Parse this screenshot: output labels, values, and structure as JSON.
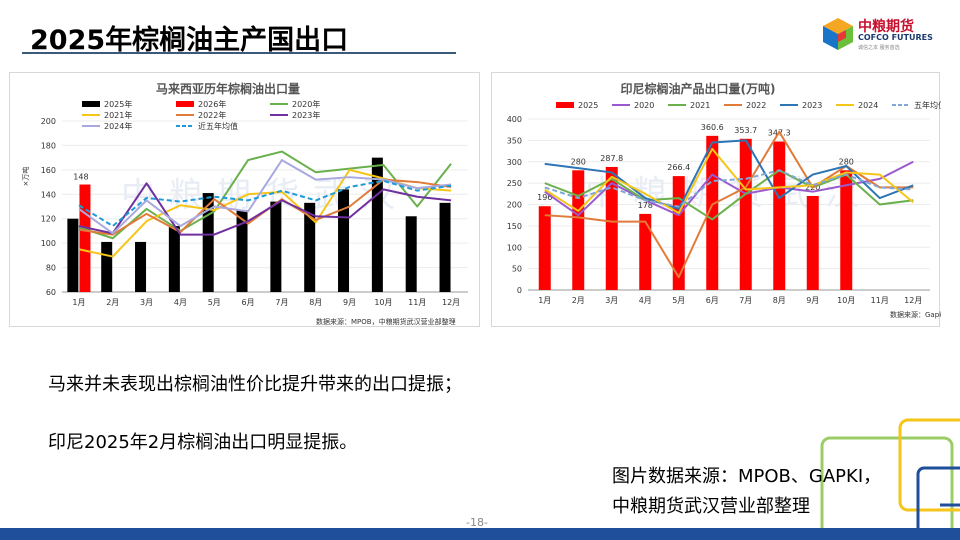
{
  "page": {
    "title": "2025年棕榈油主产国出口",
    "page_number": "-18-",
    "logo": {
      "name_cn": "中粮期货",
      "name_en": "COFCO FUTURES",
      "tagline": "诚信之本 服务首选"
    },
    "bullets": [
      "马来并未表现出棕榈油性价比提升带来的出口提振；",
      "印尼2025年2月棕榈油出口明显提振。"
    ],
    "source_lines": [
      "图片数据来源：MPOB、GAPKI，",
      "中粮期货武汉营业部整理"
    ],
    "colors": {
      "title_rule": "#3a5a7a",
      "footer": "#1f4e9b",
      "brand_red": "#c8102e",
      "brand_blue": "#1a3a6e"
    }
  },
  "chart_data": [
    {
      "type": "bar",
      "title": "马来西亚历年棕榈油出口量",
      "ylabel": "×万吨",
      "ylim": [
        60,
        200
      ],
      "yticks": [
        60,
        80,
        100,
        120,
        140,
        160,
        180,
        200
      ],
      "categories": [
        "1月",
        "2月",
        "3月",
        "4月",
        "5月",
        "6月",
        "7月",
        "8月",
        "9月",
        "10月",
        "11月",
        "12月"
      ],
      "watermark": "中粮期货武汉",
      "source": "数据来源：MPOB，中粮期货武汉营业部整理",
      "bar_label": "148",
      "series": [
        {
          "name": "2025年",
          "kind": "bar",
          "color": "#000000",
          "values": [
            120,
            101,
            101,
            114,
            141,
            127,
            134,
            133,
            144,
            170,
            122,
            133
          ]
        },
        {
          "name": "2026年",
          "kind": "bar",
          "color": "#ff0000",
          "values": [
            148,
            null,
            null,
            null,
            null,
            null,
            null,
            null,
            null,
            null,
            null,
            null
          ]
        },
        {
          "name": "2020年",
          "kind": "line",
          "color": "#6ab04c",
          "values": [
            113,
            104,
            128,
            110,
            126,
            168,
            175,
            158,
            161,
            164,
            130,
            165
          ]
        },
        {
          "name": "2021年",
          "kind": "line",
          "color": "#f5c518",
          "values": [
            95,
            89,
            118,
            131,
            127,
            140,
            142,
            117,
            160,
            153,
            145,
            143
          ]
        },
        {
          "name": "2022年",
          "kind": "line",
          "color": "#e07b39",
          "values": [
            111,
            107,
            124,
            109,
            136,
            116,
            136,
            119,
            130,
            152,
            150,
            146
          ]
        },
        {
          "name": "2023年",
          "kind": "line",
          "color": "#7030a0",
          "values": [
            114,
            108,
            149,
            107,
            107,
            118,
            135,
            122,
            121,
            144,
            138,
            135
          ]
        },
        {
          "name": "2024年",
          "kind": "line",
          "color": "#a9a9e0",
          "values": [
            128,
            108,
            135,
            114,
            130,
            126,
            168,
            152,
            154,
            152,
            145,
            148
          ]
        },
        {
          "name": "近五年均值",
          "kind": "dash",
          "color": "#1e9bd7",
          "values": [
            131,
            114,
            137,
            134,
            138,
            135,
            143,
            135,
            146,
            151,
            143,
            147
          ]
        }
      ]
    },
    {
      "type": "bar",
      "title": "印尼棕榈油产品出口量(万吨)",
      "ylim": [
        0,
        400
      ],
      "yticks": [
        0,
        50,
        100,
        150,
        200,
        250,
        300,
        350,
        400
      ],
      "categories": [
        "1月",
        "2月",
        "3月",
        "4月",
        "5月",
        "6月",
        "7月",
        "8月",
        "9月",
        "10月",
        "11月",
        "12月"
      ],
      "watermark": "中粮期货武汉",
      "source": "数据来源：Gapki",
      "series": [
        {
          "name": "2025",
          "kind": "bar",
          "color": "#ff0000",
          "values": [
            196,
            280,
            287.8,
            178,
            266.4,
            360.6,
            353.7,
            347.3,
            220,
            280,
            null,
            null
          ],
          "labels": [
            "196",
            "280",
            "287.8",
            "178",
            "266.4",
            "360.6",
            "353.7",
            "347.3",
            "220",
            "280",
            "",
            ""
          ]
        },
        {
          "name": "2020",
          "kind": "line",
          "color": "#9b59d0",
          "values": [
            230,
            175,
            250,
            210,
            175,
            270,
            225,
            240,
            230,
            245,
            260,
            300
          ]
        },
        {
          "name": "2021",
          "kind": "line",
          "color": "#6ab04c",
          "values": [
            250,
            220,
            260,
            210,
            215,
            165,
            225,
            280,
            240,
            270,
            200,
            210
          ]
        },
        {
          "name": "2022",
          "kind": "line",
          "color": "#e07b39",
          "values": [
            175,
            170,
            160,
            160,
            30,
            200,
            240,
            370,
            240,
            290,
            240,
            240
          ]
        },
        {
          "name": "2023",
          "kind": "line",
          "color": "#2e75b6",
          "values": [
            295,
            285,
            275,
            215,
            190,
            345,
            350,
            215,
            270,
            290,
            215,
            245
          ]
        },
        {
          "name": "2024",
          "kind": "line",
          "color": "#f5c518",
          "values": [
            235,
            185,
            265,
            225,
            180,
            330,
            235,
            240,
            245,
            275,
            270,
            205
          ]
        },
        {
          "name": "五年均值",
          "kind": "dash",
          "color": "#7fa7d8",
          "values": [
            240,
            215,
            240,
            210,
            195,
            255,
            260,
            280,
            245,
            270,
            240,
            235
          ]
        }
      ]
    }
  ]
}
